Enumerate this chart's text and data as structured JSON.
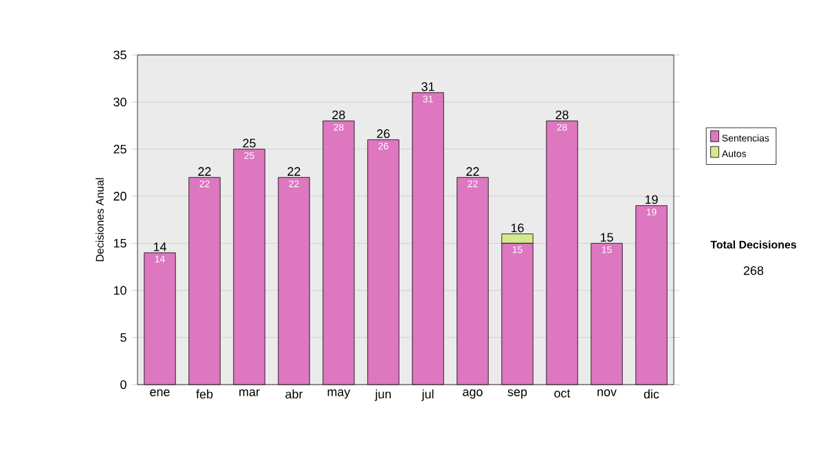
{
  "chart_data": {
    "type": "bar",
    "stacked": true,
    "ylabel": "Decisiones Anual",
    "categories": [
      "ene",
      "feb",
      "mar",
      "abr",
      "may",
      "jun",
      "jul",
      "ago",
      "sep",
      "oct",
      "nov",
      "dic"
    ],
    "series": [
      {
        "name": "Sentencias",
        "color": "#dd77c0",
        "values": [
          14,
          22,
          25,
          22,
          28,
          26,
          31,
          22,
          15,
          28,
          15,
          19
        ],
        "value_labels": [
          "14",
          "22",
          "25",
          "22",
          "28",
          "26",
          "31",
          "22",
          "15",
          "28",
          "15",
          "19"
        ]
      },
      {
        "name": "Autos",
        "color": "#d4e890",
        "values": [
          null,
          null,
          null,
          null,
          null,
          null,
          null,
          null,
          1,
          null,
          null,
          null
        ]
      }
    ],
    "totals": [
      "14",
      "22",
      "25",
      "22",
      "28",
      "26",
      "31",
      "22",
      "16",
      "28",
      "15",
      "19"
    ],
    "ylim": [
      0,
      35
    ],
    "yticks": [
      0,
      5,
      10,
      15,
      20,
      25,
      30,
      35
    ],
    "grid": "y",
    "legend": "right",
    "annotations": [
      "Total Decisiones",
      "268"
    ]
  }
}
